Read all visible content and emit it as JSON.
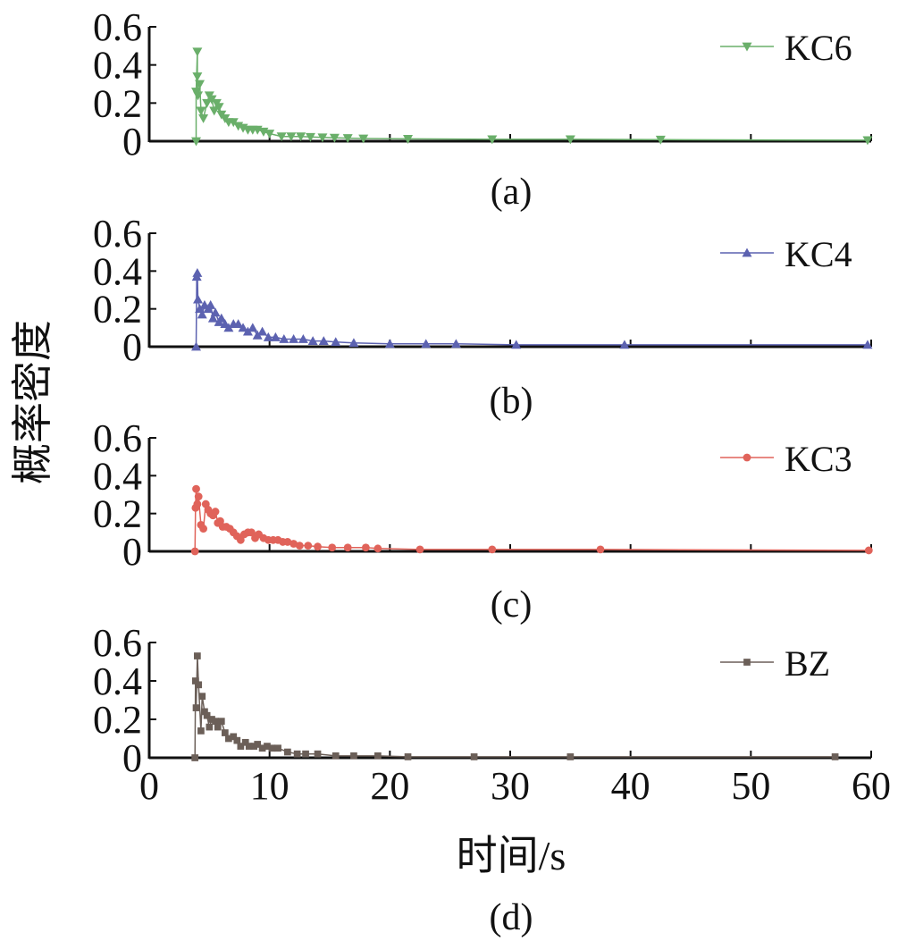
{
  "chart_data": {
    "type": "line",
    "xlabel": "时间/s",
    "ylabel": "概率密度",
    "xlim": [
      0,
      60
    ],
    "ylim": [
      0,
      0.6
    ],
    "xticks": [
      "0",
      "10",
      "20",
      "30",
      "40",
      "50",
      "60"
    ],
    "yticks": [
      "0",
      "0.2",
      "0.4",
      "0.6"
    ],
    "grid": false,
    "legend_placement": "top-right",
    "panels": [
      {
        "label": "(a)",
        "series": [
          {
            "name": "KC6",
            "marker": "triangle-down",
            "color": "#6aaf6a",
            "x": [
              3.9,
              3.9,
              4.0,
              4.0,
              4.05,
              4.2,
              4.3,
              4.5,
              4.8,
              5.0,
              5.2,
              5.4,
              5.6,
              5.8,
              6.0,
              6.3,
              6.6,
              7.0,
              7.4,
              7.8,
              8.2,
              8.6,
              9.0,
              9.5,
              10.0,
              11.0,
              11.8,
              12.6,
              13.4,
              14.4,
              15.4,
              16.5,
              17.8,
              21.5,
              28.5,
              35.0,
              42.5,
              59.7
            ],
            "y": [
              0.0,
              0.26,
              0.47,
              0.34,
              0.24,
              0.3,
              0.16,
              0.12,
              0.2,
              0.24,
              0.22,
              0.16,
              0.2,
              0.18,
              0.14,
              0.12,
              0.1,
              0.1,
              0.08,
              0.07,
              0.06,
              0.06,
              0.06,
              0.05,
              0.04,
              0.025,
              0.025,
              0.025,
              0.022,
              0.02,
              0.018,
              0.016,
              0.014,
              0.012,
              0.01,
              0.01,
              0.008,
              0.005
            ]
          }
        ]
      },
      {
        "label": "(b)",
        "series": [
          {
            "name": "KC4",
            "marker": "triangle-up",
            "color": "#5c62b0",
            "x": [
              3.9,
              3.95,
              4.0,
              4.05,
              4.2,
              4.4,
              4.6,
              4.9,
              5.1,
              5.3,
              5.5,
              5.8,
              6.0,
              6.3,
              6.6,
              7.0,
              7.4,
              7.8,
              8.2,
              8.6,
              9.0,
              9.4,
              9.9,
              10.5,
              11.2,
              12.0,
              12.8,
              13.6,
              14.5,
              15.5,
              17.0,
              20.0,
              23.0,
              25.5,
              30.5,
              39.5,
              59.7
            ],
            "y": [
              0.0,
              0.37,
              0.39,
              0.25,
              0.2,
              0.17,
              0.22,
              0.2,
              0.22,
              0.15,
              0.18,
              0.13,
              0.15,
              0.12,
              0.1,
              0.12,
              0.12,
              0.1,
              0.08,
              0.1,
              0.06,
              0.08,
              0.05,
              0.05,
              0.04,
              0.04,
              0.04,
              0.03,
              0.03,
              0.025,
              0.02,
              0.015,
              0.015,
              0.015,
              0.01,
              0.01,
              0.01
            ]
          }
        ]
      },
      {
        "label": "(c)",
        "series": [
          {
            "name": "KC3",
            "marker": "circle",
            "color": "#e0635a",
            "x": [
              3.8,
              3.85,
              3.9,
              4.0,
              4.1,
              4.3,
              4.5,
              4.7,
              4.9,
              5.1,
              5.3,
              5.5,
              5.7,
              5.9,
              6.1,
              6.4,
              6.7,
              7.0,
              7.3,
              7.6,
              7.9,
              8.2,
              8.5,
              8.8,
              9.1,
              9.5,
              9.9,
              10.3,
              10.7,
              11.1,
              11.5,
              12.0,
              12.5,
              13.2,
              14.0,
              15.2,
              16.5,
              18.0,
              19.0,
              22.5,
              28.5,
              37.5,
              59.8
            ],
            "y": [
              0.0,
              0.23,
              0.33,
              0.25,
              0.29,
              0.14,
              0.12,
              0.25,
              0.22,
              0.2,
              0.19,
              0.21,
              0.15,
              0.16,
              0.13,
              0.13,
              0.12,
              0.1,
              0.08,
              0.06,
              0.09,
              0.1,
              0.1,
              0.07,
              0.09,
              0.07,
              0.06,
              0.06,
              0.06,
              0.05,
              0.05,
              0.04,
              0.03,
              0.03,
              0.025,
              0.02,
              0.02,
              0.02,
              0.015,
              0.01,
              0.01,
              0.01,
              0.005
            ]
          }
        ]
      },
      {
        "label": "(d)",
        "series": [
          {
            "name": "BZ",
            "marker": "square",
            "color": "#6b5f58",
            "x": [
              3.8,
              3.85,
              3.9,
              4.0,
              4.1,
              4.3,
              4.4,
              4.6,
              4.8,
              5.0,
              5.2,
              5.5,
              5.7,
              6.0,
              6.3,
              6.6,
              7.0,
              7.3,
              7.6,
              8.0,
              8.3,
              8.7,
              9.0,
              9.4,
              9.8,
              10.2,
              10.7,
              11.5,
              12.3,
              13.0,
              14.0,
              15.5,
              17.0,
              19.0,
              21.5,
              27.0,
              35.0,
              57.0
            ],
            "y": [
              0.0,
              0.4,
              0.26,
              0.53,
              0.38,
              0.14,
              0.32,
              0.24,
              0.22,
              0.16,
              0.2,
              0.19,
              0.16,
              0.19,
              0.13,
              0.1,
              0.11,
              0.09,
              0.06,
              0.08,
              0.06,
              0.06,
              0.07,
              0.05,
              0.06,
              0.05,
              0.05,
              0.03,
              0.02,
              0.02,
              0.02,
              0.01,
              0.01,
              0.01,
              0.005,
              0.005,
              0.005,
              0.005
            ]
          }
        ]
      }
    ]
  }
}
